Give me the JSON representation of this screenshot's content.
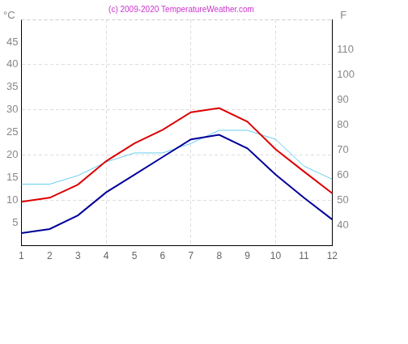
{
  "chart_data": {
    "type": "line",
    "title": "(c) 2009-2020 TemperatureWeather.com",
    "ylabel": "°C",
    "y2label": "F",
    "categories": [
      "1",
      "2",
      "3",
      "4",
      "5",
      "6",
      "7",
      "8",
      "9",
      "10",
      "11",
      "12"
    ],
    "series": [
      {
        "color": "#dd0000",
        "values": [
          9.7,
          10.6,
          13.5,
          18.7,
          22.6,
          25.6,
          29.5,
          30.4,
          27.4,
          21.3,
          16.4,
          11.6
        ]
      },
      {
        "color": "#000099",
        "values": [
          2.8,
          3.7,
          6.7,
          11.8,
          15.7,
          19.6,
          23.5,
          24.5,
          21.5,
          15.7,
          10.6,
          5.8
        ]
      },
      {
        "color": "#66ccee",
        "values": [
          13.6,
          13.6,
          15.5,
          18.5,
          20.5,
          20.5,
          22.6,
          25.5,
          25.5,
          23.5,
          17.6,
          14.7
        ]
      }
    ],
    "ylim": [
      0,
      50
    ],
    "yticks": [
      5,
      10,
      15,
      20,
      25,
      30,
      35,
      40,
      45
    ],
    "y2lim": [
      32,
      122
    ],
    "y2ticks": [
      40,
      50,
      60,
      70,
      80,
      90,
      100,
      110
    ],
    "grid": true
  }
}
